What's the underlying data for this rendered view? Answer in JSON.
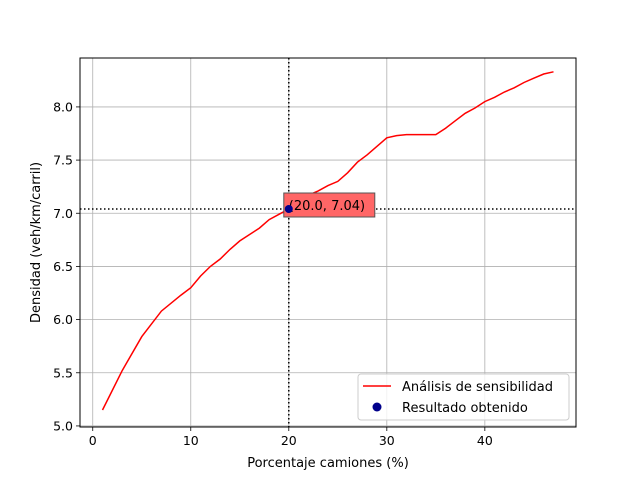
{
  "chart_data": {
    "type": "line",
    "xlabel": "Porcentaje camiones (%)",
    "ylabel": "Densidad (veh/km/carril)",
    "xlim": [
      -1.3,
      49.3
    ],
    "ylim": [
      4.99,
      8.46
    ],
    "xticks": [
      0,
      10,
      20,
      30,
      40
    ],
    "yticks": [
      5.0,
      5.5,
      6.0,
      6.5,
      7.0,
      7.5,
      8.0
    ],
    "xtick_labels": [
      "0",
      "10",
      "20",
      "30",
      "40"
    ],
    "ytick_labels": [
      "5.0",
      "5.5",
      "6.0",
      "6.5",
      "7.0",
      "7.5",
      "8.0"
    ],
    "grid": true,
    "legend_position": "lower-right",
    "series": [
      {
        "name": "Análisis de sensibilidad",
        "type": "line",
        "color": "#ff0000",
        "x": [
          1,
          3,
          5,
          7,
          9,
          10,
          11,
          12,
          13,
          14,
          15,
          16,
          17,
          18,
          19,
          20,
          21,
          22,
          23,
          24,
          25,
          26,
          27,
          28,
          29,
          30,
          31,
          32,
          33,
          34,
          35,
          36,
          37,
          38,
          39,
          40,
          41,
          42,
          43,
          44,
          45,
          46,
          47
        ],
        "y": [
          5.15,
          5.52,
          5.84,
          6.08,
          6.23,
          6.3,
          6.41,
          6.5,
          6.57,
          6.66,
          6.74,
          6.8,
          6.86,
          6.94,
          6.99,
          7.04,
          7.11,
          7.17,
          7.21,
          7.26,
          7.3,
          7.38,
          7.48,
          7.55,
          7.63,
          7.71,
          7.73,
          7.74,
          7.74,
          7.74,
          7.74,
          7.8,
          7.87,
          7.94,
          7.99,
          8.05,
          8.09,
          8.14,
          8.18,
          8.23,
          8.27,
          8.31,
          8.33
        ]
      },
      {
        "name": "Resultado obtenido",
        "type": "scatter",
        "color": "#00008b",
        "x": [
          20.0
        ],
        "y": [
          7.04
        ]
      }
    ],
    "reference_lines": {
      "vertical_x": 20.0,
      "horizontal_y": 7.04,
      "style": "dotted",
      "color": "#000000"
    },
    "annotation": {
      "text": "(20.0, 7.04)",
      "x": 20.0,
      "y": 7.04,
      "box_color": "#ff6666"
    }
  }
}
